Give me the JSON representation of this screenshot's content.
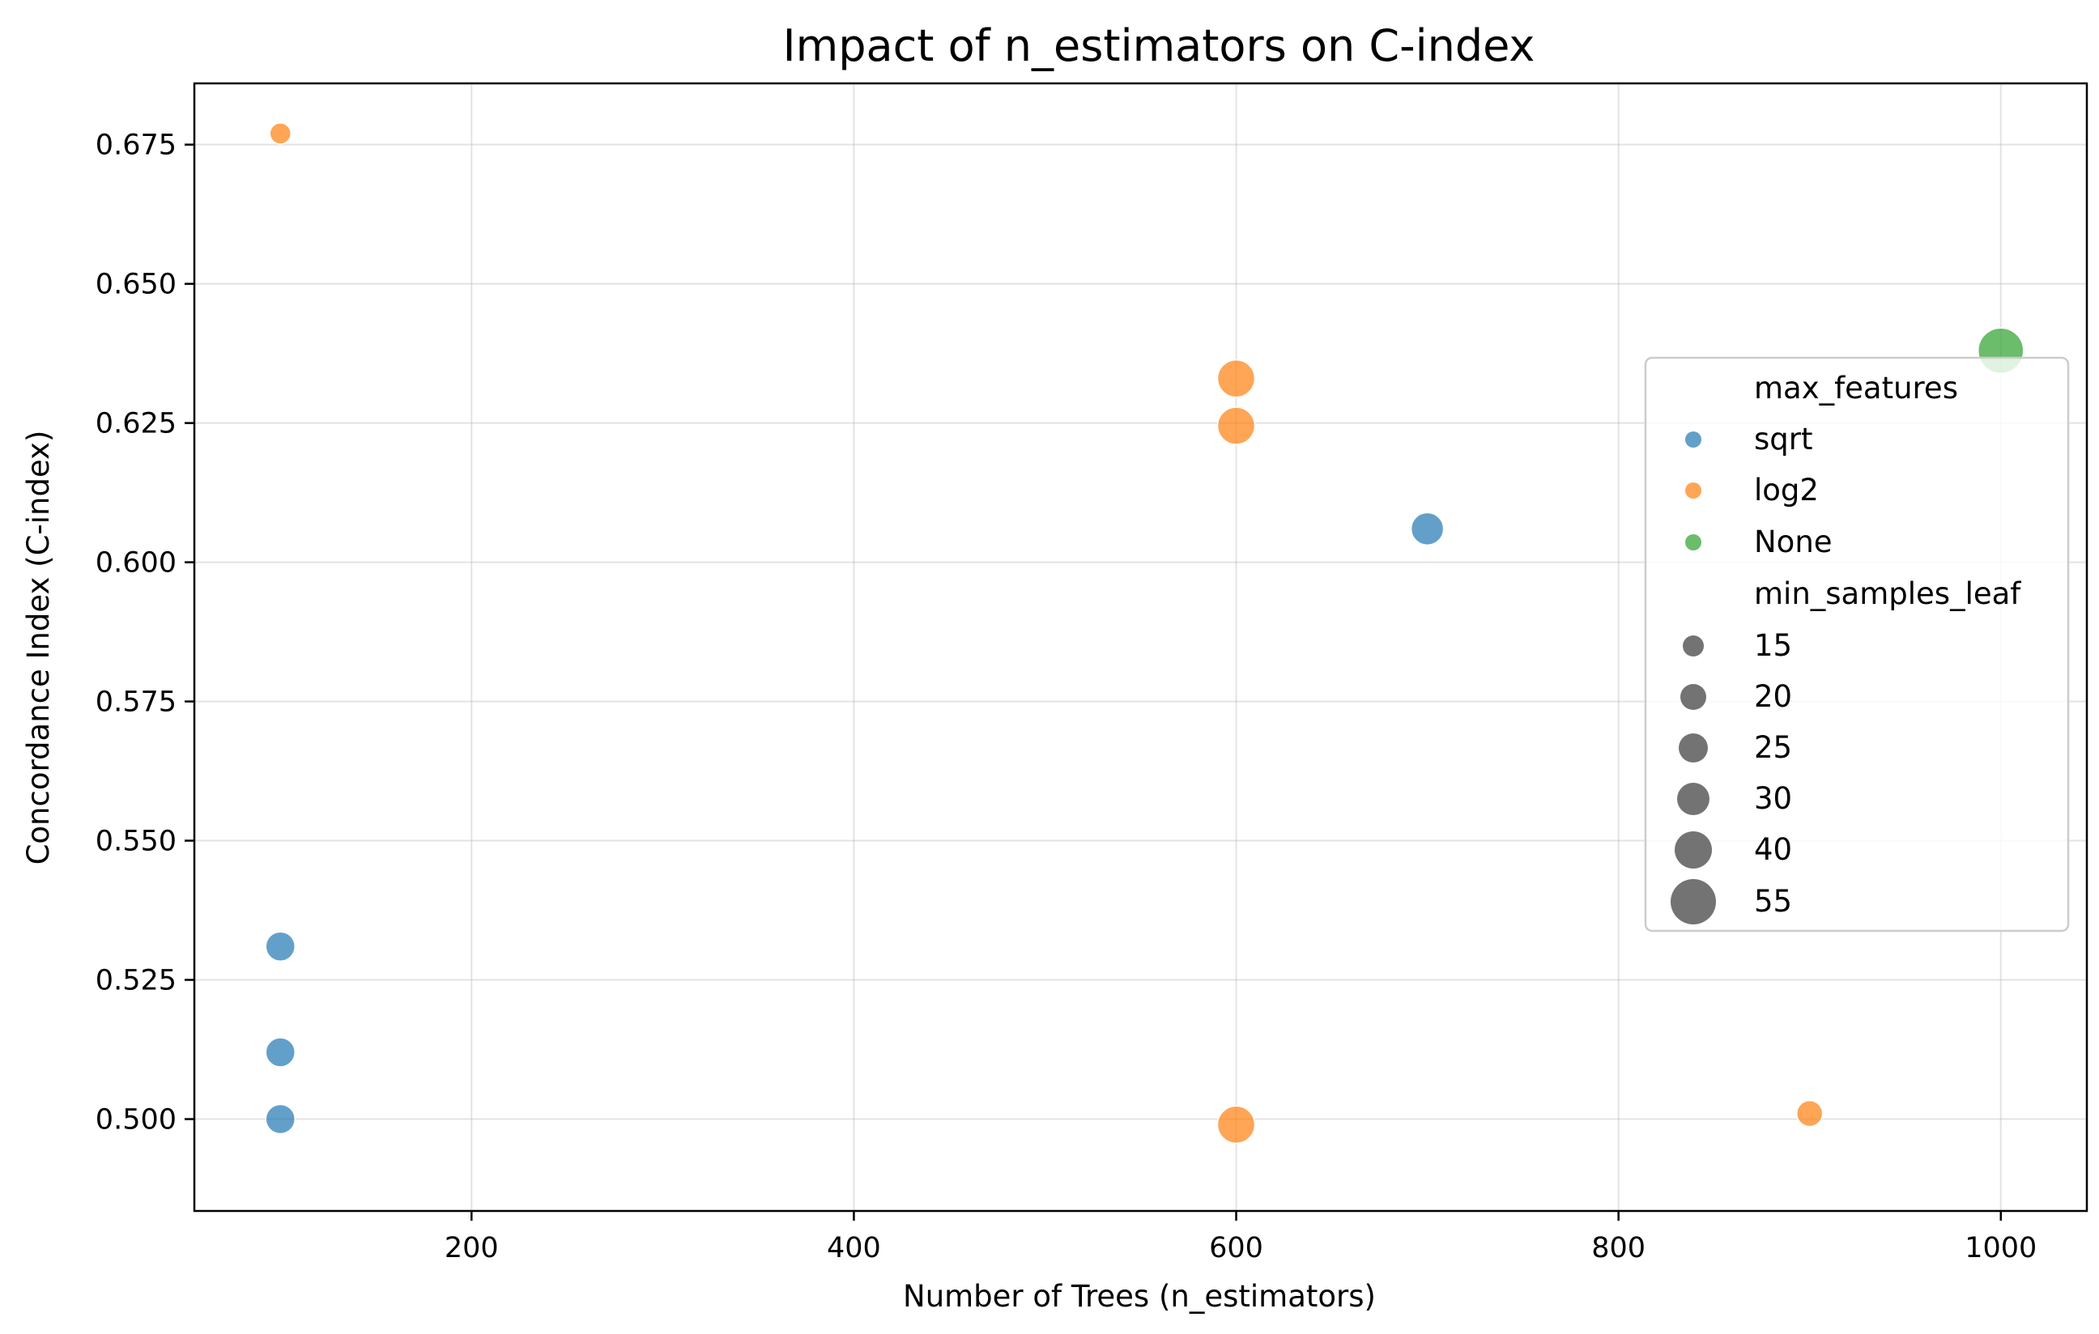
{
  "chart_data": {
    "type": "scatter",
    "title": "Impact of n_estimators on C-index",
    "xlabel": "Number of Trees (n_estimators)",
    "ylabel": "Concordance Index (C-index)",
    "xlim": [
      55,
      1045
    ],
    "ylim": [
      0.4835,
      0.686
    ],
    "xticks": [
      200,
      400,
      600,
      800,
      1000
    ],
    "yticks": [
      0.5,
      0.525,
      0.55,
      0.575,
      0.6,
      0.625,
      0.65,
      0.675
    ],
    "ytick_labels": [
      "0.500",
      "0.525",
      "0.550",
      "0.575",
      "0.600",
      "0.625",
      "0.650",
      "0.675"
    ],
    "grid": true,
    "legend_position": "right",
    "hue": {
      "title": "max_features",
      "categories": [
        "sqrt",
        "log2",
        "None"
      ],
      "colors": [
        "#1f77b4",
        "#ff7f0e",
        "#2ca02c"
      ]
    },
    "size": {
      "title": "min_samples_leaf",
      "values": [
        "15",
        "20",
        "25",
        "30",
        "40",
        "55"
      ]
    },
    "points": [
      {
        "x": 100,
        "y": 0.677,
        "max_features": "log2",
        "min_samples_leaf": 15
      },
      {
        "x": 100,
        "y": 0.531,
        "max_features": "sqrt",
        "min_samples_leaf": 25
      },
      {
        "x": 100,
        "y": 0.512,
        "max_features": "sqrt",
        "min_samples_leaf": 25
      },
      {
        "x": 100,
        "y": 0.5,
        "max_features": "sqrt",
        "min_samples_leaf": 25
      },
      {
        "x": 600,
        "y": 0.633,
        "max_features": "log2",
        "min_samples_leaf": 40
      },
      {
        "x": 600,
        "y": 0.6245,
        "max_features": "log2",
        "min_samples_leaf": 40
      },
      {
        "x": 600,
        "y": 0.499,
        "max_features": "log2",
        "min_samples_leaf": 40
      },
      {
        "x": 700,
        "y": 0.606,
        "max_features": "sqrt",
        "min_samples_leaf": 30
      },
      {
        "x": 900,
        "y": 0.501,
        "max_features": "log2",
        "min_samples_leaf": 20
      },
      {
        "x": 1000,
        "y": 0.638,
        "max_features": "None",
        "min_samples_leaf": 55
      }
    ]
  }
}
